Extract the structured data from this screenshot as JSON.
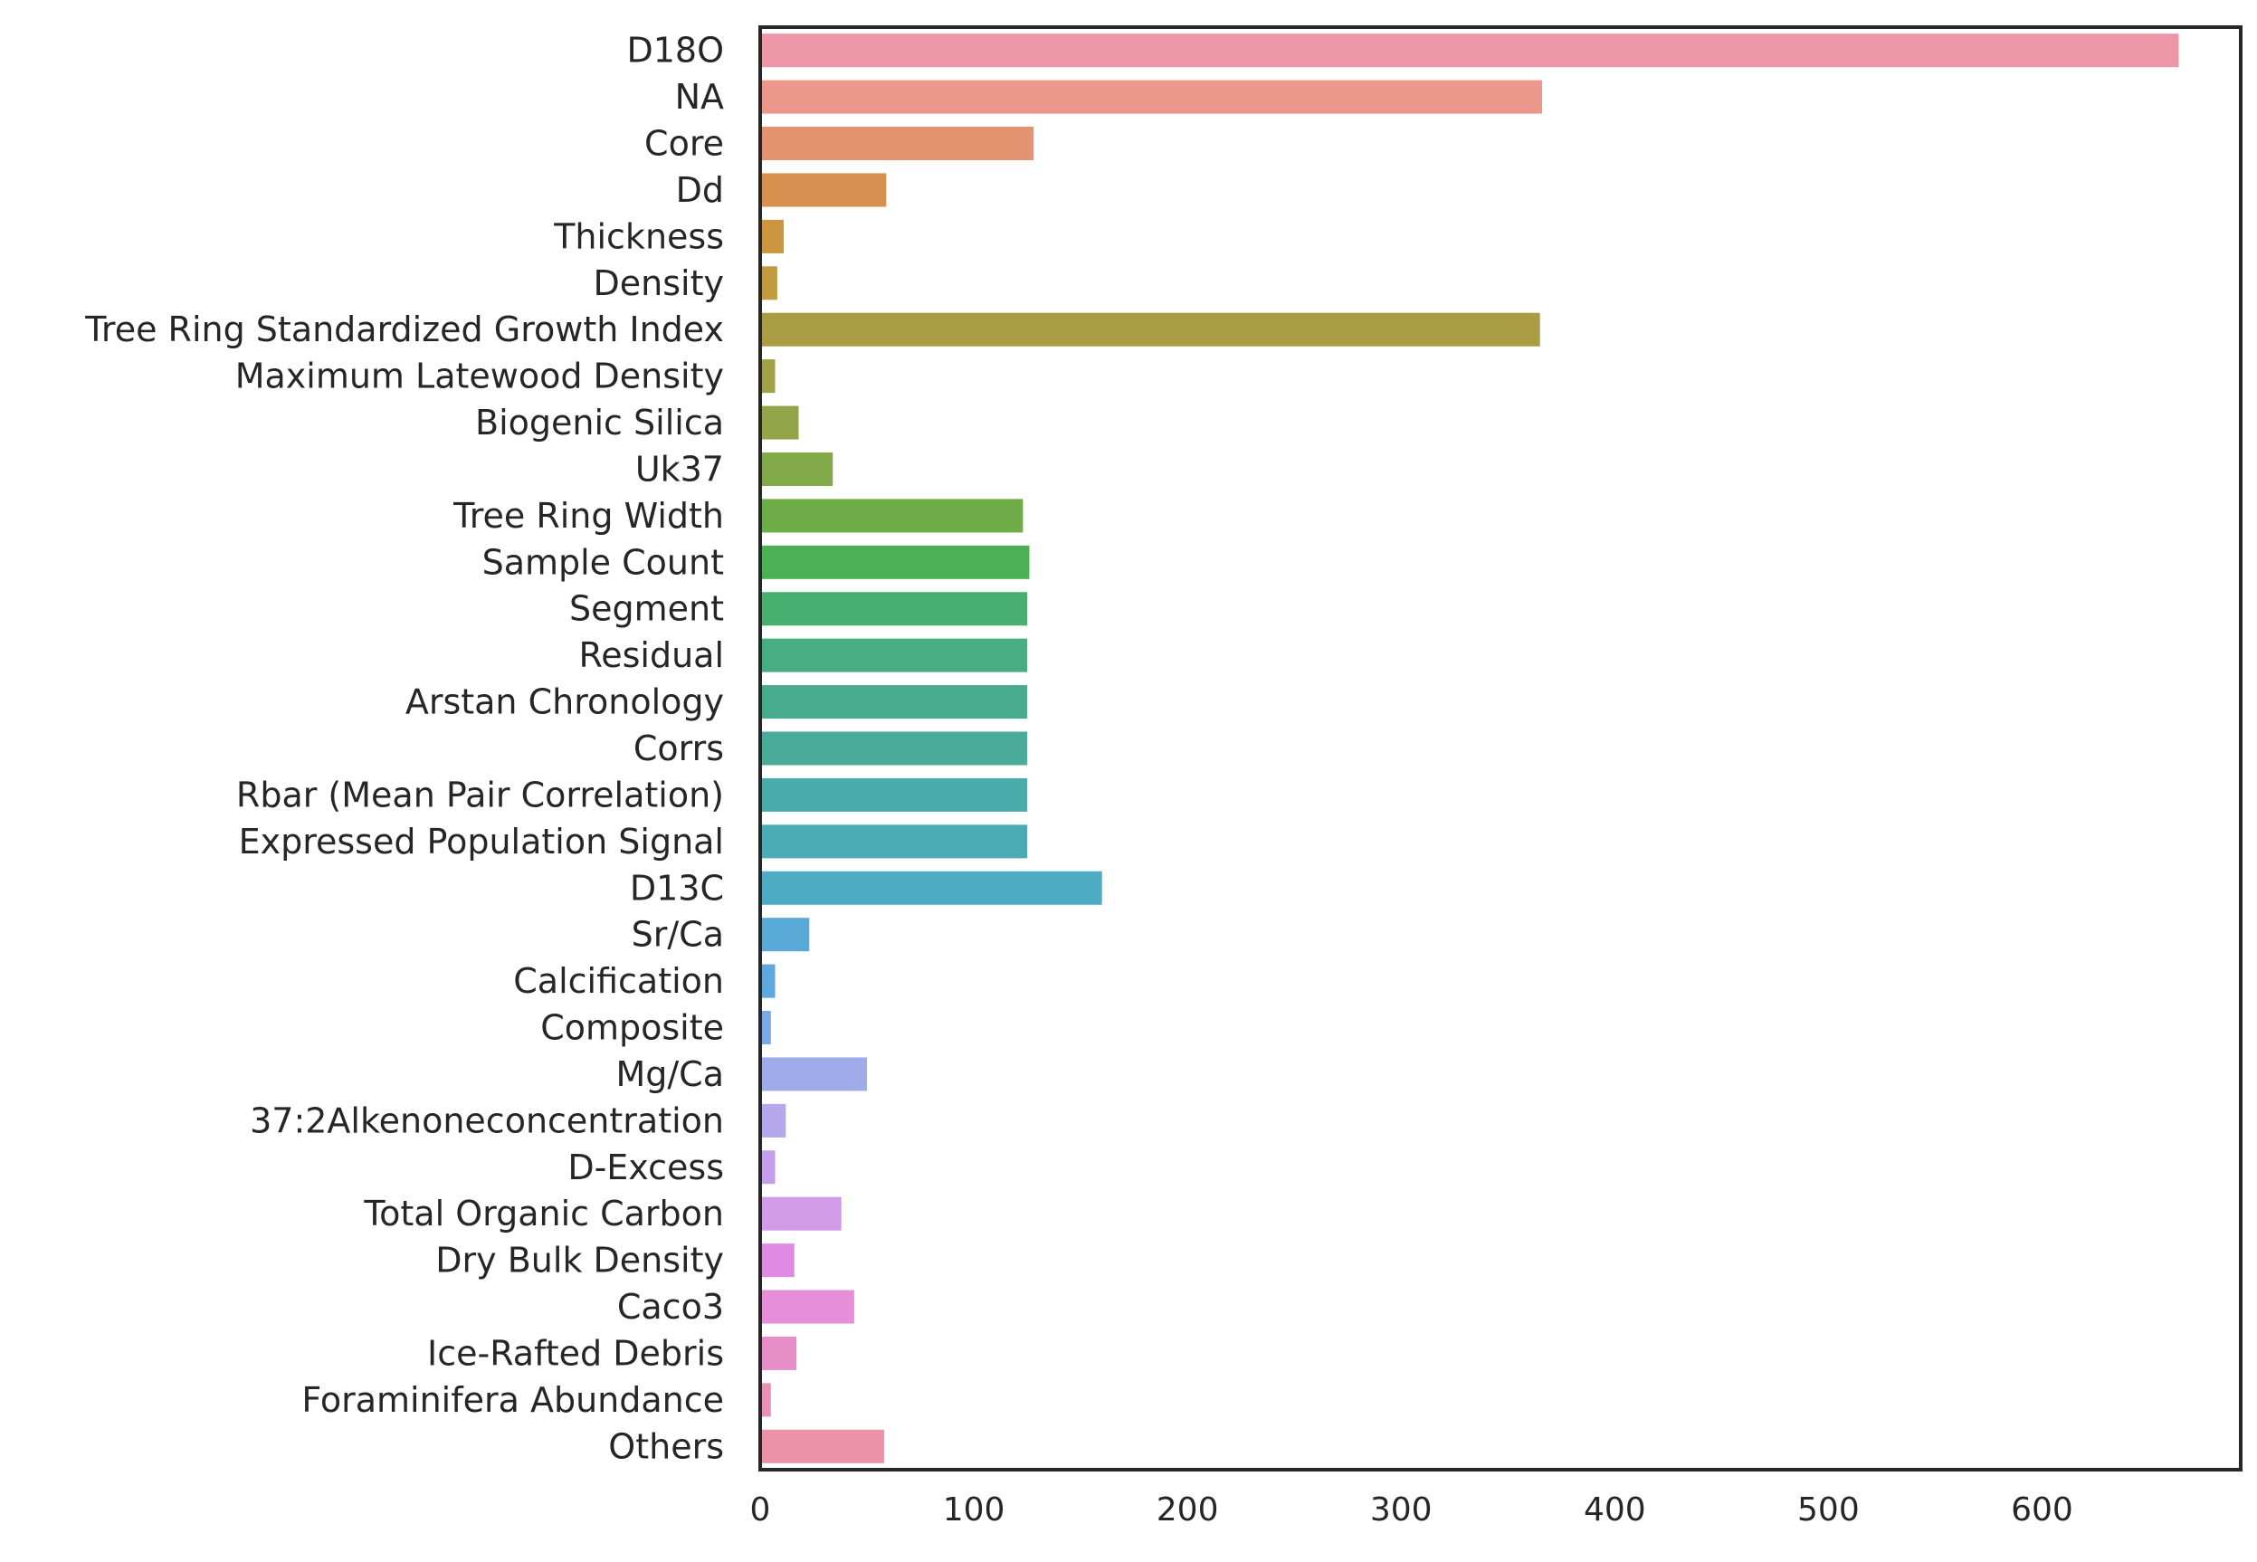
{
  "chart_data": {
    "type": "bar",
    "orientation": "horizontal",
    "title": "",
    "xlabel": "",
    "ylabel": "",
    "xlim": [
      0,
      693
    ],
    "grid": false,
    "legend": "none",
    "x_ticks": [
      "0",
      "100",
      "200",
      "300",
      "400",
      "500",
      "600"
    ],
    "x_tick_values": [
      0,
      100,
      200,
      300,
      400,
      500,
      600
    ],
    "categories": [
      "D18O",
      "NA",
      "Core",
      "Dd",
      "Thickness",
      "Density",
      "Tree Ring Standardized Growth Index",
      "Maximum Latewood Density",
      "Biogenic Silica",
      "Uk37",
      "Tree Ring Width",
      "Sample Count",
      "Segment",
      "Residual",
      "Arstan Chronology",
      "Corrs",
      "Rbar (Mean Pair Correlation)",
      "Expressed Population Signal",
      "D13C",
      "Sr/Ca",
      "Calcification",
      "Composite",
      "Mg/Ca",
      "37:2Alkenoneconcentration",
      "D-Excess",
      "Total Organic Carbon",
      "Dry Bulk Density",
      "Caco3",
      "Ice-Rafted Debris",
      "Foraminifera Abundance",
      "Others"
    ],
    "values": [
      664,
      366,
      128,
      59,
      11,
      8,
      365,
      7,
      18,
      34,
      123,
      126,
      125,
      125,
      125,
      125,
      125,
      125,
      160,
      23,
      7,
      5,
      50,
      12,
      7,
      38,
      16,
      44,
      17,
      5,
      58
    ],
    "colors": [
      "#ed96a5",
      "#ec978b",
      "#e4926f",
      "#d98f50",
      "#cc963e",
      "#bf9c40",
      "#aa9c45",
      "#a0a146",
      "#93a549",
      "#82aa4a",
      "#6eac47",
      "#4cb056",
      "#47ae6f",
      "#48ad82",
      "#49ab8e",
      "#4aab98",
      "#4aabaa",
      "#4caab5",
      "#4dabc3",
      "#5aaad8",
      "#5fa8dd",
      "#7aaae5",
      "#a0acea",
      "#b4a7ea",
      "#c29fe8",
      "#d29be8",
      "#e08ae4",
      "#e68fd8",
      "#e78ec9",
      "#ea90b8",
      "#ec92a8"
    ]
  }
}
